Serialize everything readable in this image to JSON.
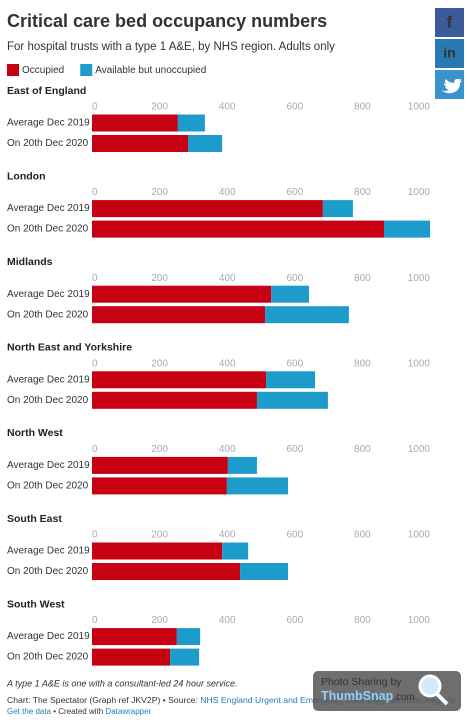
{
  "chart_data": {
    "type": "bar",
    "orientation": "horizontal",
    "stacked": true,
    "title": "Critical care bed occupancy numbers",
    "subtitle": "For hospital trusts with a type 1 A&E, by NHS region. Adults only",
    "facets": [
      "East of England",
      "London",
      "Midlands",
      "North East and Yorkshire",
      "North West",
      "South East",
      "South West"
    ],
    "categories": [
      "Average Dec 2019",
      "On 20th Dec 2020"
    ],
    "series": [
      {
        "name": "Occupied",
        "color": "#c70012",
        "values": [
          [
            254,
            284
          ],
          [
            683,
            864
          ],
          [
            530,
            512
          ],
          [
            515,
            488
          ],
          [
            402,
            399
          ],
          [
            385,
            438
          ],
          [
            251,
            231
          ]
        ]
      },
      {
        "name": "Available but unoccupied",
        "color": "#1d9ccc",
        "values": [
          [
            80,
            101
          ],
          [
            89,
            136
          ],
          [
            112,
            248
          ],
          [
            145,
            210
          ],
          [
            86,
            181
          ],
          [
            77,
            142
          ],
          [
            69,
            86
          ]
        ]
      }
    ],
    "xlim": [
      0,
      1000
    ],
    "xticks": [
      0,
      200,
      400,
      600,
      800,
      1000
    ],
    "grid": false,
    "note": "A type 1 A&E is one with a consultant-led 24 hour service.",
    "credit": "Chart: The Spectator (Graph ref JKV2P) • Source: ",
    "source": "NHS England Urgent and Emergency Care Daily Situation Reports",
    "get_data": "Get the data",
    "created_with": " • Created with ",
    "tool": "Datawrapper"
  },
  "share": [
    "f",
    "in"
  ],
  "watermark": {
    "line1": "Photo Sharing by",
    "brand": "ThumbSnap",
    "domain": ".com"
  }
}
